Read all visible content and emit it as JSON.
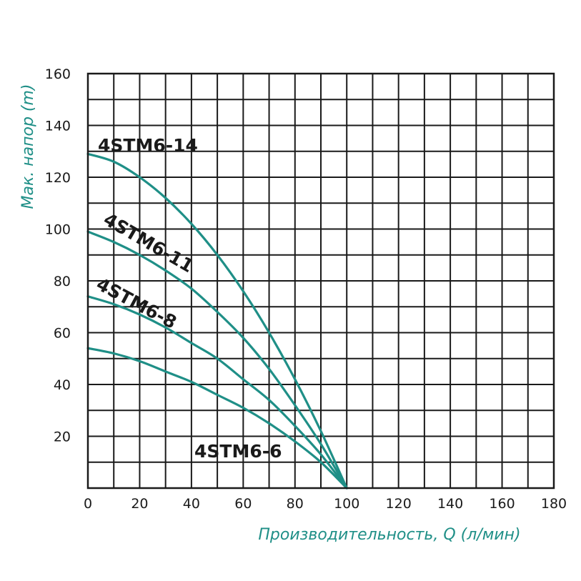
{
  "chart_data": {
    "type": "line",
    "xlabel": "Производительность, Q (л/мин)",
    "ylabel": "Мак. напор (m)",
    "xlim": [
      0,
      180
    ],
    "ylim": [
      0,
      160
    ],
    "x_ticks": [
      "0",
      "20",
      "40",
      "60",
      "80",
      "100",
      "120",
      "140",
      "160",
      "180"
    ],
    "y_ticks": [
      "20",
      "40",
      "60",
      "80",
      "100",
      "120",
      "140",
      "160"
    ],
    "grid": true,
    "colors": {
      "line": "#1f8f87",
      "grid": "#1a1a1a",
      "axis_title": "#1f8f87"
    },
    "series": [
      {
        "name": "4STM6-14",
        "x": [
          0,
          10,
          20,
          30,
          40,
          50,
          60,
          70,
          80,
          90,
          100
        ],
        "y": [
          129,
          126,
          120,
          112,
          102,
          90,
          76,
          60,
          42,
          22,
          0
        ]
      },
      {
        "name": "4STM6-11",
        "x": [
          0,
          10,
          20,
          30,
          40,
          50,
          60,
          70,
          80,
          90,
          100
        ],
        "y": [
          99,
          95,
          90,
          84,
          77,
          68,
          58,
          46,
          32,
          17,
          0
        ]
      },
      {
        "name": "4STM6-8",
        "x": [
          0,
          10,
          20,
          30,
          40,
          50,
          60,
          70,
          80,
          90,
          100
        ],
        "y": [
          74,
          71,
          67,
          62,
          56,
          50,
          42,
          34,
          24,
          13,
          0
        ]
      },
      {
        "name": "4STM6-6",
        "x": [
          0,
          10,
          20,
          30,
          40,
          50,
          60,
          70,
          80,
          90,
          100
        ],
        "y": [
          54,
          52,
          49,
          45,
          41,
          36,
          31,
          25,
          18,
          10,
          0
        ]
      }
    ]
  }
}
